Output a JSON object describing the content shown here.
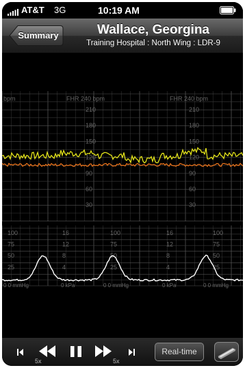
{
  "status_bar": {
    "carrier": "AT&T",
    "network": "3G",
    "time": "10:19 AM"
  },
  "navbar": {
    "back_label": "Summary",
    "patient_name": "Wallace, Georgina",
    "location": "Training Hospital : North Wing : LDR-9"
  },
  "strip": {
    "fhr_label": "FHR 240 bpm",
    "fhr_label_left": "bpm",
    "fhr_ticks": [
      "210",
      "180",
      "150",
      "120",
      "90",
      "60",
      "30"
    ],
    "toco_ticks_a": [
      "100",
      "75",
      "50",
      "25"
    ],
    "toco_ticks_b": [
      "16",
      "12",
      "8",
      "4"
    ],
    "toco_footer_a": "0 0 mmHg",
    "toco_footer_b": "0 kPa",
    "colors": {
      "fhr1": "#e4e41a",
      "fhr2": "#e8731c",
      "toco": "#ffffff",
      "grid": "#3a3a3a"
    }
  },
  "toolbar": {
    "rewind_speed": "5x",
    "forward_speed": "5x",
    "realtime_label": "Real-time",
    "icons": [
      "skip-back-icon",
      "rewind-icon",
      "pause-icon",
      "fast-forward-icon",
      "skip-forward-icon",
      "paper-icon"
    ]
  }
}
